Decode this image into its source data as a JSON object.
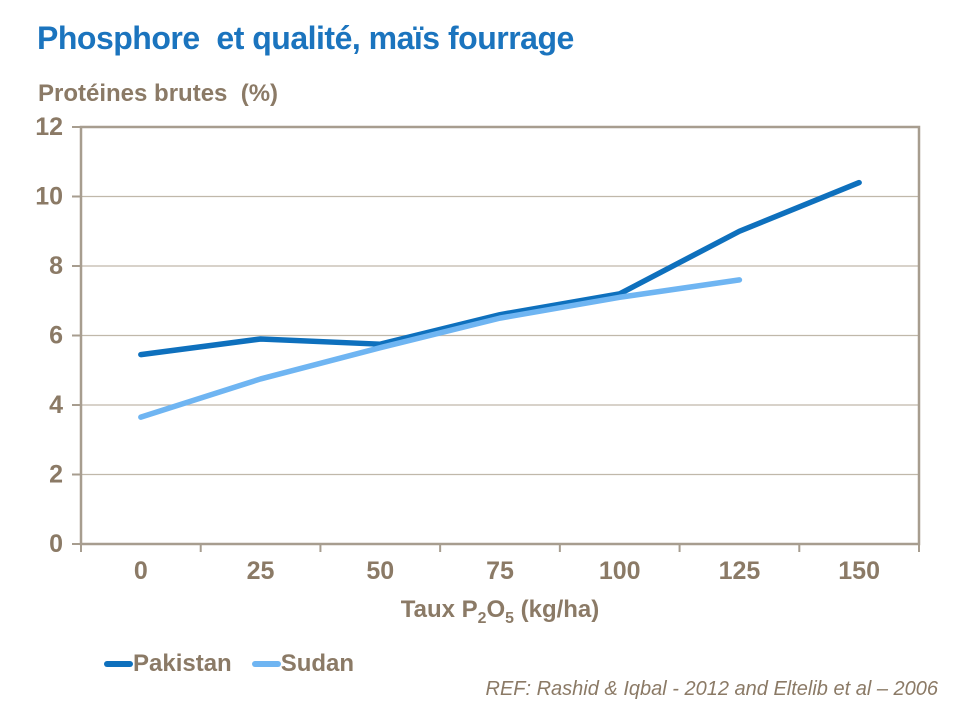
{
  "slide": {
    "title": "Phosphore  et qualité, maïs fourrage",
    "reference": "REF: Rashid & Iqbal - 2012 and Eltelib et al – 2006"
  },
  "chart_data": {
    "type": "line",
    "title": "Phosphore et qualité, maïs fourrage",
    "ylabel": "Protéines brutes  (%)",
    "xlabel": "Taux P2O5 (kg/ha)",
    "xlabel_parts": {
      "p1": "Taux P",
      "s1": "2",
      "p2": "O",
      "s2": "5",
      "p3": " (kg/ha)"
    },
    "categories": [
      "0",
      "25",
      "50",
      "75",
      "100",
      "125",
      "150"
    ],
    "series": [
      {
        "name": "Pakistan",
        "color": "#0E70BD",
        "values": [
          5.45,
          5.9,
          5.75,
          6.6,
          7.2,
          9.0,
          10.4
        ]
      },
      {
        "name": "Sudan",
        "color": "#6FB5F2",
        "values": [
          3.65,
          4.75,
          5.65,
          6.5,
          7.1,
          7.6
        ]
      }
    ],
    "ylim": [
      0,
      12
    ],
    "y_ticks": [
      0,
      2,
      4,
      6,
      8,
      10,
      12
    ],
    "grid": true,
    "legend_position": "bottom-left",
    "line_width": 5.5,
    "colors": {
      "title_text": "#1B74BE",
      "axis_text": "#8B7A66",
      "axis_line": "#A79D8F",
      "grid_line": "#C0B8AA",
      "background": "#FFFFFF"
    }
  }
}
